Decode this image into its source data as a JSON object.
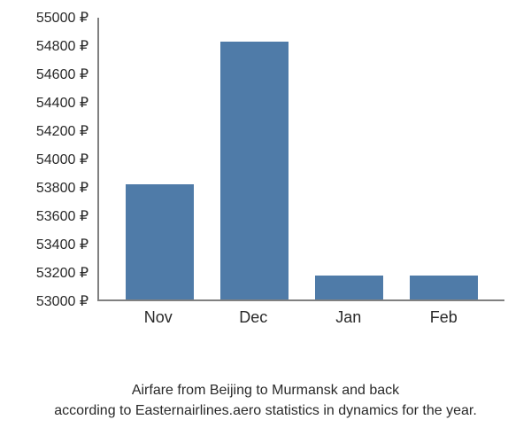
{
  "chart": {
    "type": "bar",
    "categories": [
      "Nov",
      "Dec",
      "Jan",
      "Feb"
    ],
    "values": [
      53810,
      54820,
      53170,
      53170
    ],
    "bar_color": "#4f7ba8",
    "background_color": "#ffffff",
    "axis_color": "#808080",
    "text_color": "#292929",
    "ylim": [
      53000,
      55000
    ],
    "ytick_step": 200,
    "ytick_labels": [
      "53000 ₽",
      "53200 ₽",
      "53400 ₽",
      "53600 ₽",
      "53800 ₽",
      "54000 ₽",
      "54200 ₽",
      "54400 ₽",
      "54600 ₽",
      "54800 ₽",
      "55000 ₽"
    ],
    "ytick_values": [
      53000,
      53200,
      53400,
      53600,
      53800,
      54000,
      54200,
      54400,
      54600,
      54800,
      55000
    ],
    "label_fontsize": 16,
    "xlabel_fontsize": 18,
    "bar_width": 0.7,
    "caption_line1": "Airfare from Beijing to Murmansk and back",
    "caption_line2": "according to Easternairlines.aero statistics in dynamics for the year.",
    "caption_fontsize": 16
  }
}
